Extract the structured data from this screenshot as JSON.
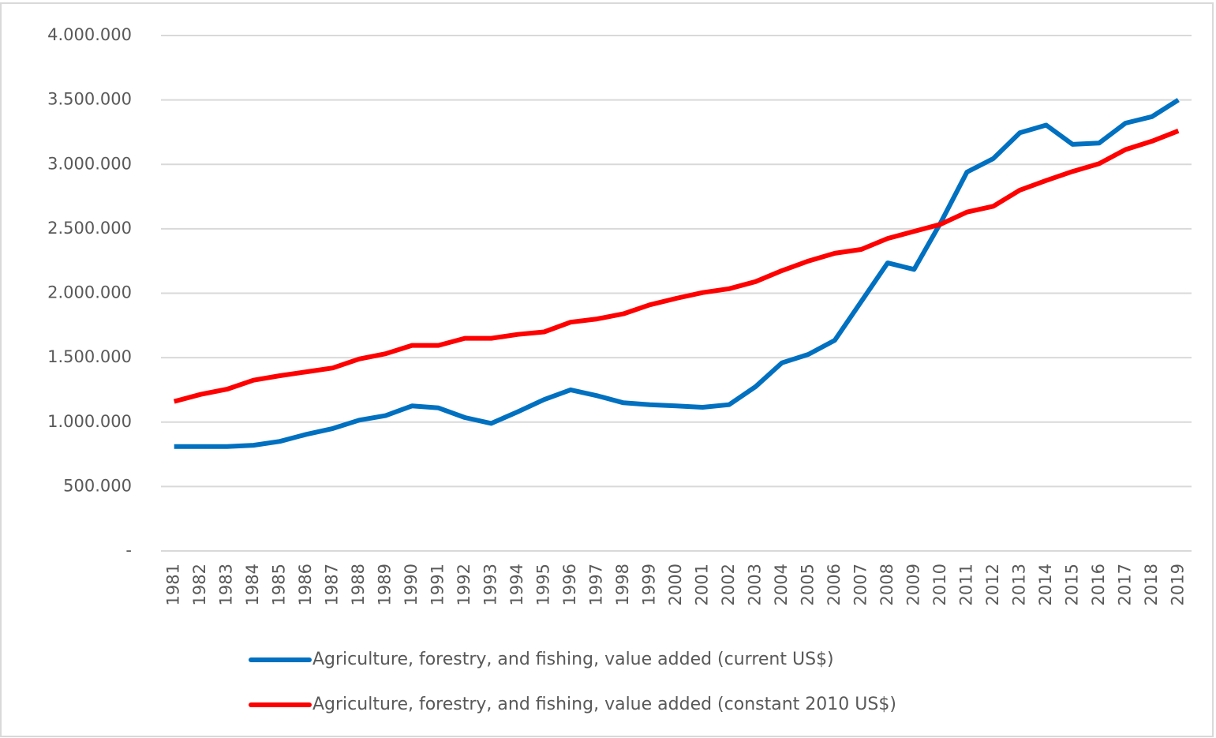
{
  "chart_data": {
    "type": "line",
    "categories": [
      "1981",
      "1982",
      "1983",
      "1984",
      "1985",
      "1986",
      "1987",
      "1988",
      "1989",
      "1990",
      "1991",
      "1992",
      "1993",
      "1994",
      "1995",
      "1996",
      "1997",
      "1998",
      "1999",
      "2000",
      "2001",
      "2002",
      "2003",
      "2004",
      "2005",
      "2006",
      "2007",
      "2008",
      "2009",
      "2010",
      "2011",
      "2012",
      "2013",
      "2014",
      "2015",
      "2016",
      "2017",
      "2018",
      "2019"
    ],
    "series": [
      {
        "name": "Agriculture, forestry, and fishing, value added (current US$)",
        "color": "#0070c0",
        "values": [
          810000,
          810000,
          810000,
          820000,
          850000,
          905000,
          950000,
          1015000,
          1050000,
          1125000,
          1110000,
          1035000,
          990000,
          1080000,
          1175000,
          1250000,
          1205000,
          1150000,
          1135000,
          1125000,
          1115000,
          1135000,
          1275000,
          1460000,
          1525000,
          1635000,
          1935000,
          2235000,
          2185000,
          2545000,
          2940000,
          3045000,
          3245000,
          3305000,
          3155000,
          3165000,
          3320000,
          3370000,
          3500000
        ]
      },
      {
        "name": "Agriculture, forestry, and fishing, value added (constant 2010 US$)",
        "color": "#ff0000",
        "values": [
          1160000,
          1215000,
          1255000,
          1325000,
          1360000,
          1390000,
          1420000,
          1490000,
          1530000,
          1595000,
          1595000,
          1650000,
          1650000,
          1680000,
          1700000,
          1775000,
          1800000,
          1840000,
          1910000,
          1960000,
          2005000,
          2035000,
          2090000,
          2175000,
          2250000,
          2310000,
          2340000,
          2425000,
          2480000,
          2535000,
          2630000,
          2675000,
          2800000,
          2875000,
          2945000,
          3005000,
          3115000,
          3180000,
          3260000
        ]
      }
    ],
    "ylim": [
      0,
      4000000
    ],
    "yticks": [
      {
        "value": 0,
        "label": "-"
      },
      {
        "value": 500000,
        "label": "500.000"
      },
      {
        "value": 1000000,
        "label": "1.000.000"
      },
      {
        "value": 1500000,
        "label": "1.500.000"
      },
      {
        "value": 2000000,
        "label": "2.000.000"
      },
      {
        "value": 2500000,
        "label": "2.500.000"
      },
      {
        "value": 3000000,
        "label": "3.000.000"
      },
      {
        "value": 3500000,
        "label": "3.500.000"
      },
      {
        "value": 4000000,
        "label": "4.000.000"
      }
    ],
    "grid": true,
    "legend": "bottom"
  }
}
